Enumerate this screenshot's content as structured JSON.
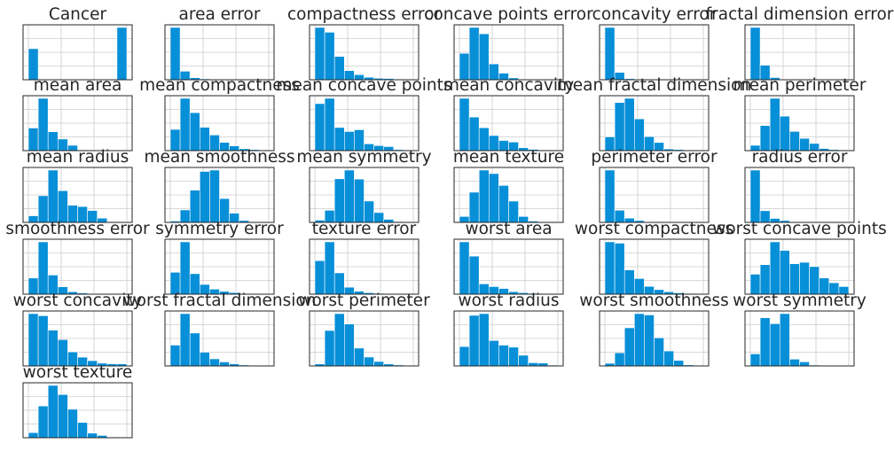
{
  "chart_data": {
    "type": "bar",
    "subtype": "histogram-grid",
    "bins": 10,
    "bar_color": "#078fd8",
    "grid": true,
    "panels": [
      {
        "title": "Cancer",
        "values": [
          212,
          0,
          0,
          0,
          0,
          0,
          0,
          0,
          0,
          357
        ]
      },
      {
        "title": "area error",
        "values": [
          460,
          75,
          18,
          8,
          3,
          1,
          1,
          1,
          0,
          2
        ]
      },
      {
        "title": "compactness error",
        "values": [
          206,
          187,
          92,
          36,
          20,
          10,
          6,
          5,
          3,
          2
        ]
      },
      {
        "title": "concave points error",
        "values": [
          100,
          198,
          174,
          60,
          25,
          7,
          2,
          1,
          1,
          1
        ]
      },
      {
        "title": "concavity error",
        "values": [
          484,
          68,
          10,
          3,
          2,
          1,
          0,
          0,
          0,
          1
        ]
      },
      {
        "title": "fractal dimension error",
        "values": [
          424,
          118,
          18,
          4,
          2,
          1,
          1,
          0,
          0,
          1
        ]
      },
      {
        "title": "mean area",
        "values": [
          115,
          266,
          96,
          59,
          27,
          4,
          1,
          0,
          0,
          1
        ]
      },
      {
        "title": "mean compactness",
        "values": [
          80,
          197,
          143,
          88,
          59,
          31,
          18,
          7,
          4,
          2
        ]
      },
      {
        "title": "mean concave points",
        "values": [
          187,
          208,
          92,
          76,
          83,
          27,
          20,
          16,
          4,
          2
        ]
      },
      {
        "title": "mean concavity",
        "values": [
          201,
          129,
          88,
          58,
          39,
          33,
          11,
          5,
          3,
          2
        ]
      },
      {
        "title": "mean fractal dimension",
        "values": [
          49,
          171,
          186,
          113,
          50,
          29,
          6,
          4,
          1,
          1
        ]
      },
      {
        "title": "mean perimeter",
        "values": [
          20,
          94,
          196,
          129,
          72,
          46,
          27,
          8,
          4,
          2
        ]
      },
      {
        "title": "mean radius",
        "values": [
          25,
          101,
          198,
          120,
          65,
          60,
          45,
          16,
          3,
          2
        ]
      },
      {
        "title": "mean smoothness",
        "values": [
          5,
          46,
          119,
          188,
          193,
          88,
          34,
          7,
          2,
          1
        ]
      },
      {
        "title": "mean symmetry",
        "values": [
          8,
          43,
          155,
          186,
          154,
          76,
          35,
          11,
          3,
          1
        ]
      },
      {
        "title": "mean texture",
        "values": [
          22,
          112,
          194,
          181,
          137,
          79,
          22,
          5,
          2,
          2
        ]
      },
      {
        "title": "perimeter error",
        "values": [
          417,
          97,
          34,
          15,
          5,
          1,
          1,
          1,
          0,
          2
        ]
      },
      {
        "title": "radius error",
        "values": [
          420,
          94,
          32,
          15,
          6,
          1,
          1,
          1,
          0,
          2
        ]
      },
      {
        "title": "smoothness error",
        "values": [
          92,
          298,
          109,
          42,
          14,
          7,
          2,
          1,
          1,
          1
        ]
      },
      {
        "title": "symmetry error",
        "values": [
          108,
          258,
          101,
          48,
          25,
          14,
          8,
          3,
          2,
          2
        ]
      },
      {
        "title": "texture error",
        "values": [
          159,
          248,
          101,
          33,
          14,
          7,
          4,
          1,
          1,
          1
        ]
      },
      {
        "title": "worst area",
        "values": [
          249,
          181,
          49,
          36,
          27,
          12,
          7,
          4,
          2,
          2
        ]
      },
      {
        "title": "worst compactness",
        "values": [
          194,
          189,
          90,
          58,
          29,
          17,
          9,
          5,
          3,
          2
        ]
      },
      {
        "title": "worst concave points",
        "values": [
          42,
          62,
          110,
          92,
          64,
          67,
          58,
          34,
          24,
          16
        ]
      },
      {
        "title": "worst concavity",
        "values": [
          149,
          143,
          102,
          75,
          40,
          25,
          15,
          8,
          6,
          6
        ]
      },
      {
        "title": "worst fractal dimension",
        "values": [
          88,
          221,
          139,
          58,
          30,
          17,
          9,
          4,
          2,
          1
        ]
      },
      {
        "title": "worst perimeter",
        "values": [
          8,
          143,
          211,
          169,
          72,
          36,
          18,
          8,
          4,
          0
        ]
      },
      {
        "title": "worst radius",
        "values": [
          67,
          175,
          181,
          88,
          72,
          65,
          37,
          11,
          10,
          3
        ]
      },
      {
        "title": "worst smoothness",
        "values": [
          10,
          50,
          145,
          199,
          194,
          107,
          57,
          21,
          4,
          2
        ]
      },
      {
        "title": "worst symmetry",
        "values": [
          41,
          163,
          143,
          177,
          23,
          14,
          3,
          2,
          1,
          2
        ]
      },
      {
        "title": "worst texture",
        "values": [
          20,
          125,
          206,
          170,
          112,
          60,
          18,
          9,
          3,
          2
        ]
      }
    ]
  }
}
